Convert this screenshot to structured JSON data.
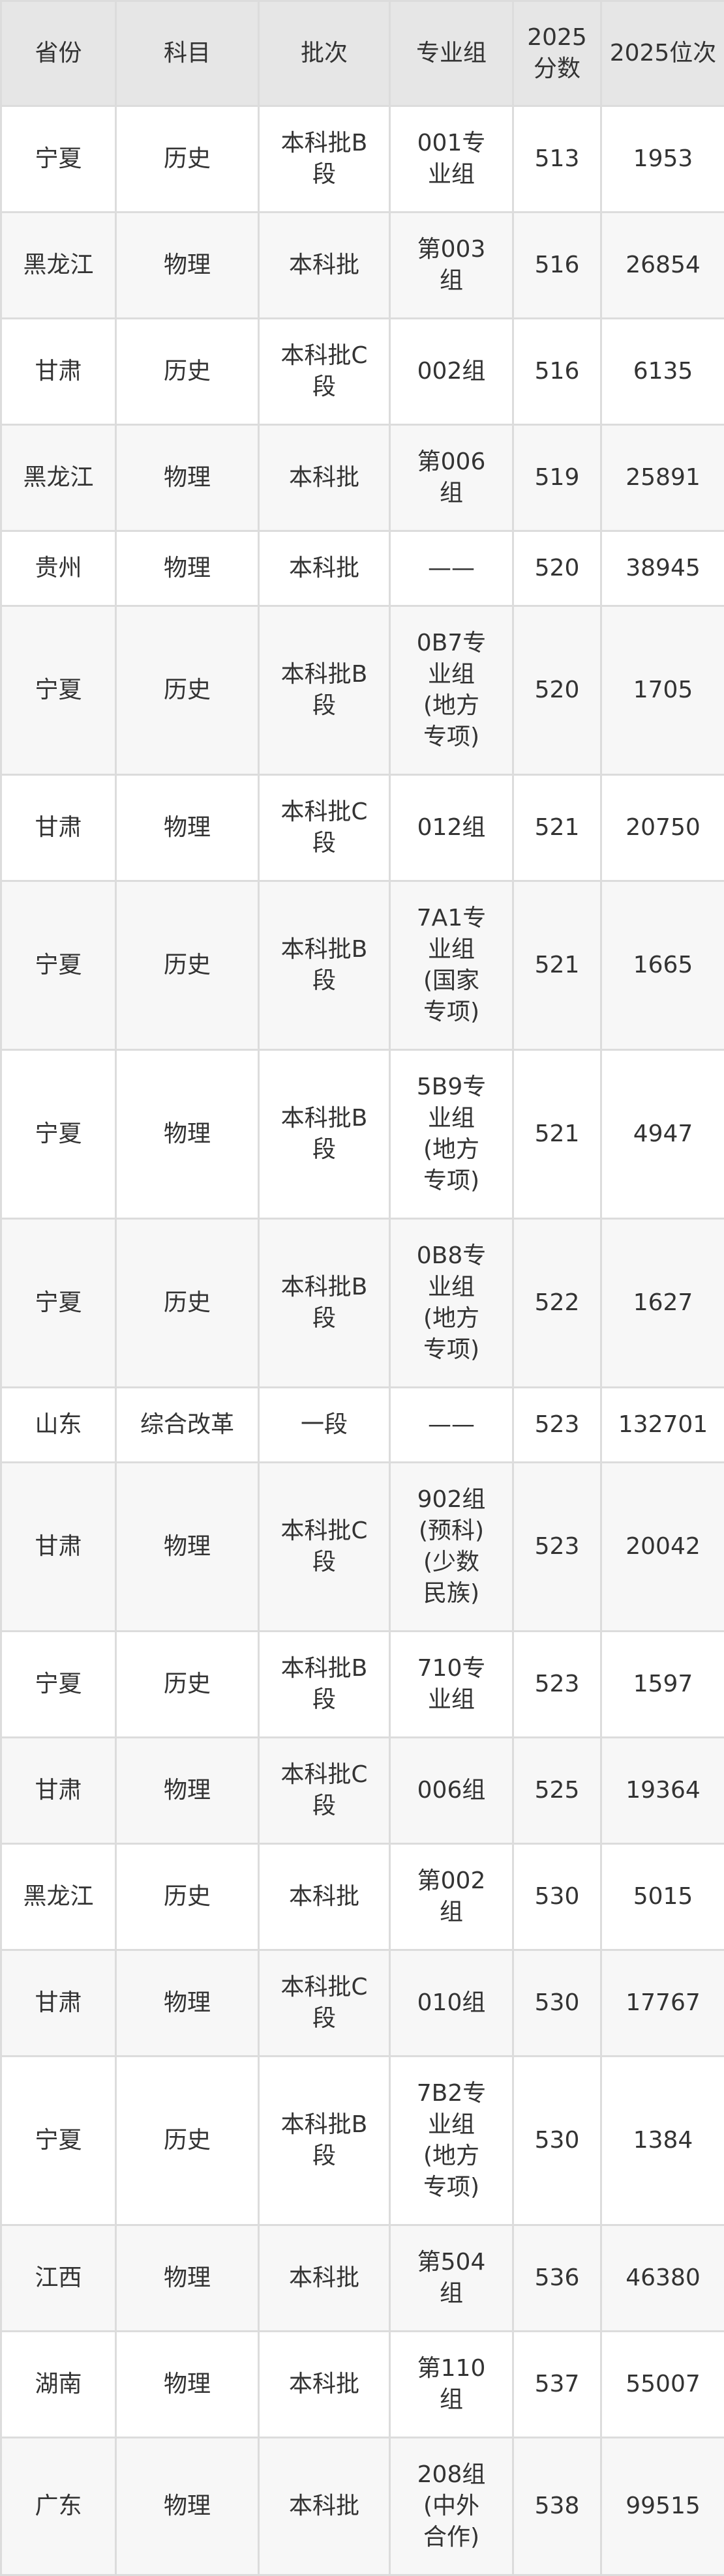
{
  "headers": [
    "省份",
    "科目",
    "批次",
    "专业组",
    "2025分数",
    "2025位次"
  ],
  "rows": [
    [
      "宁夏",
      "历史",
      "本科批B段",
      "001专业组",
      "513",
      "1953"
    ],
    [
      "黑龙江",
      "物理",
      "本科批",
      "第003组",
      "516",
      "26854"
    ],
    [
      "甘肃",
      "历史",
      "本科批C段",
      "002组",
      "516",
      "6135"
    ],
    [
      "黑龙江",
      "物理",
      "本科批",
      "第006组",
      "519",
      "25891"
    ],
    [
      "贵州",
      "物理",
      "本科批",
      "——",
      "520",
      "38945"
    ],
    [
      "宁夏",
      "历史",
      "本科批B段",
      "0B7专业组(地方专项)",
      "520",
      "1705"
    ],
    [
      "甘肃",
      "物理",
      "本科批C段",
      "012组",
      "521",
      "20750"
    ],
    [
      "宁夏",
      "历史",
      "本科批B段",
      "7A1专业组(国家专项)",
      "521",
      "1665"
    ],
    [
      "宁夏",
      "物理",
      "本科批B段",
      "5B9专业组(地方专项)",
      "521",
      "4947"
    ],
    [
      "宁夏",
      "历史",
      "本科批B段",
      "0B8专业组(地方专项)",
      "522",
      "1627"
    ],
    [
      "山东",
      "综合改革",
      "一段",
      "——",
      "523",
      "132701"
    ],
    [
      "甘肃",
      "物理",
      "本科批C段",
      "902组(预科)(少数民族)",
      "523",
      "20042"
    ],
    [
      "宁夏",
      "历史",
      "本科批B段",
      "710专业组",
      "523",
      "1597"
    ],
    [
      "甘肃",
      "物理",
      "本科批C段",
      "006组",
      "525",
      "19364"
    ],
    [
      "黑龙江",
      "历史",
      "本科批",
      "第002组",
      "530",
      "5015"
    ],
    [
      "甘肃",
      "物理",
      "本科批C段",
      "010组",
      "530",
      "17767"
    ],
    [
      "宁夏",
      "历史",
      "本科批B段",
      "7B2专业组(地方专项)",
      "530",
      "1384"
    ],
    [
      "江西",
      "物理",
      "本科批",
      "第504组",
      "536",
      "46380"
    ],
    [
      "湖南",
      "物理",
      "本科批",
      "第110组",
      "537",
      "55007"
    ],
    [
      "广东",
      "物理",
      "本科批",
      "208组(中外合作)",
      "538",
      "99515"
    ]
  ],
  "colors": {
    "header_bg": "#e6e6e6",
    "border": "#dcdcdc",
    "row_alt": "#f7f7f7",
    "text": "#333333"
  }
}
